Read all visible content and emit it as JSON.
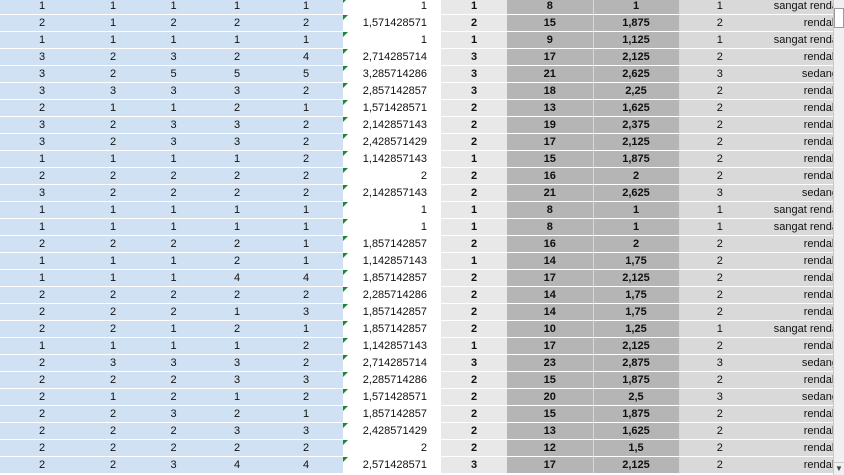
{
  "rows": [
    [
      "1",
      "1",
      "1",
      "1",
      "1",
      "1",
      "1",
      "8",
      "1",
      "1",
      "sangat renda"
    ],
    [
      "2",
      "1",
      "2",
      "2",
      "2",
      "1,571428571",
      "2",
      "15",
      "1,875",
      "2",
      "rendah"
    ],
    [
      "1",
      "1",
      "1",
      "1",
      "1",
      "1",
      "1",
      "9",
      "1,125",
      "1",
      "sangat renda"
    ],
    [
      "3",
      "2",
      "3",
      "2",
      "4",
      "2,714285714",
      "3",
      "17",
      "2,125",
      "2",
      "rendah"
    ],
    [
      "3",
      "2",
      "5",
      "5",
      "5",
      "3,285714286",
      "3",
      "21",
      "2,625",
      "3",
      "sedang"
    ],
    [
      "3",
      "3",
      "3",
      "3",
      "2",
      "2,857142857",
      "3",
      "18",
      "2,25",
      "2",
      "rendah"
    ],
    [
      "2",
      "1",
      "1",
      "2",
      "1",
      "1,571428571",
      "2",
      "13",
      "1,625",
      "2",
      "rendah"
    ],
    [
      "3",
      "2",
      "3",
      "3",
      "2",
      "2,142857143",
      "2",
      "19",
      "2,375",
      "2",
      "rendah"
    ],
    [
      "3",
      "2",
      "3",
      "3",
      "2",
      "2,428571429",
      "2",
      "17",
      "2,125",
      "2",
      "rendah"
    ],
    [
      "1",
      "1",
      "1",
      "1",
      "2",
      "1,142857143",
      "1",
      "15",
      "1,875",
      "2",
      "rendah"
    ],
    [
      "2",
      "2",
      "2",
      "2",
      "2",
      "2",
      "2",
      "16",
      "2",
      "2",
      "rendah"
    ],
    [
      "3",
      "2",
      "2",
      "2",
      "2",
      "2,142857143",
      "2",
      "21",
      "2,625",
      "3",
      "sedang"
    ],
    [
      "1",
      "1",
      "1",
      "1",
      "1",
      "1",
      "1",
      "8",
      "1",
      "1",
      "sangat renda"
    ],
    [
      "1",
      "1",
      "1",
      "1",
      "1",
      "1",
      "1",
      "8",
      "1",
      "1",
      "sangat renda"
    ],
    [
      "2",
      "2",
      "2",
      "2",
      "1",
      "1,857142857",
      "2",
      "16",
      "2",
      "2",
      "rendah"
    ],
    [
      "1",
      "1",
      "1",
      "2",
      "1",
      "1,142857143",
      "1",
      "14",
      "1,75",
      "2",
      "rendah"
    ],
    [
      "1",
      "1",
      "1",
      "4",
      "4",
      "1,857142857",
      "2",
      "17",
      "2,125",
      "2",
      "rendah"
    ],
    [
      "2",
      "2",
      "2",
      "2",
      "2",
      "2,285714286",
      "2",
      "14",
      "1,75",
      "2",
      "rendah"
    ],
    [
      "2",
      "2",
      "2",
      "1",
      "3",
      "1,857142857",
      "2",
      "14",
      "1,75",
      "2",
      "rendah"
    ],
    [
      "2",
      "2",
      "1",
      "2",
      "1",
      "1,857142857",
      "2",
      "10",
      "1,25",
      "1",
      "sangat renda"
    ],
    [
      "1",
      "1",
      "1",
      "1",
      "2",
      "1,142857143",
      "1",
      "17",
      "2,125",
      "2",
      "rendah"
    ],
    [
      "2",
      "3",
      "3",
      "3",
      "2",
      "2,714285714",
      "3",
      "23",
      "2,875",
      "3",
      "sedang"
    ],
    [
      "2",
      "2",
      "2",
      "3",
      "3",
      "2,285714286",
      "2",
      "15",
      "1,875",
      "2",
      "rendah"
    ],
    [
      "2",
      "1",
      "2",
      "1",
      "2",
      "1,571428571",
      "2",
      "20",
      "2,5",
      "3",
      "sedang"
    ],
    [
      "2",
      "2",
      "3",
      "2",
      "1",
      "1,857142857",
      "2",
      "15",
      "1,875",
      "2",
      "rendah"
    ],
    [
      "2",
      "2",
      "2",
      "3",
      "3",
      "2,428571429",
      "2",
      "13",
      "1,625",
      "2",
      "rendah"
    ],
    [
      "2",
      "2",
      "2",
      "2",
      "2",
      "2",
      "2",
      "12",
      "1,5",
      "2",
      "rendah"
    ],
    [
      "2",
      "2",
      "3",
      "4",
      "4",
      "2,571428571",
      "3",
      "17",
      "2,125",
      "2",
      "rendah"
    ]
  ],
  "scroll_down_glyph": "▼"
}
